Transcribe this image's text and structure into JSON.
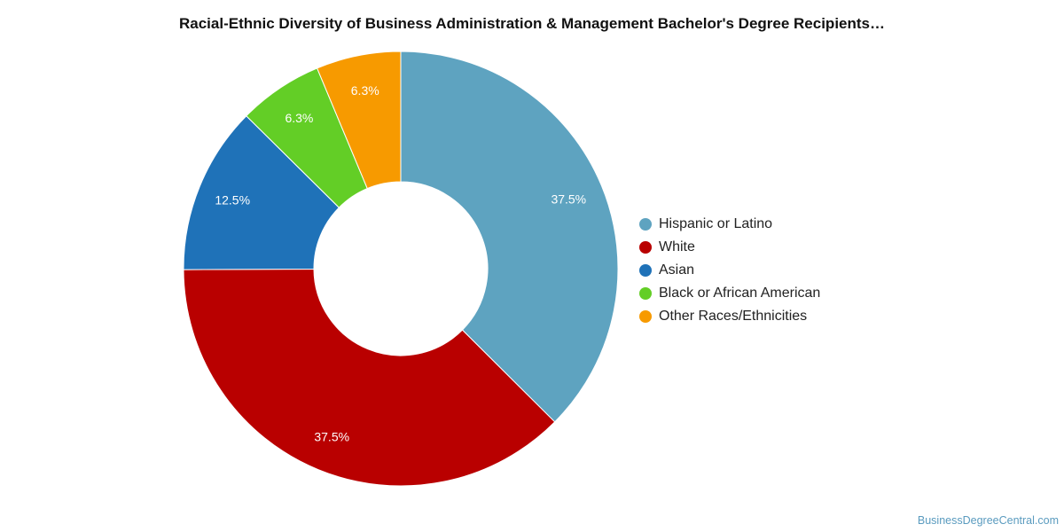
{
  "chart_data": {
    "type": "pie",
    "donut": true,
    "title": "Racial-Ethnic Diversity of Business Administration & Management Bachelor's Degree Recipients…",
    "categories": [
      "Hispanic or Latino",
      "White",
      "Asian",
      "Black or African American",
      "Other Races/Ethnicities"
    ],
    "values": [
      37.5,
      37.5,
      12.5,
      6.3,
      6.3
    ],
    "labels": [
      "37.5%",
      "37.5%",
      "12.5%",
      "6.3%",
      "6.3%"
    ],
    "colors": [
      "#5ea3c0",
      "#b90000",
      "#1f72b8",
      "#63ce26",
      "#f79a00"
    ],
    "legend_position": "right"
  },
  "watermark": "BusinessDegreeCentral.com"
}
